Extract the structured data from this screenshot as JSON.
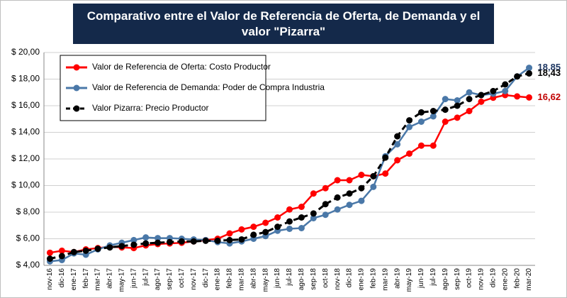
{
  "chart_data": {
    "type": "line",
    "title": "Comparativo entre el Valor de Referencia de Oferta, de Demanda y el valor \"Pizarra\"",
    "categories": [
      "nov-16",
      "dic-16",
      "ene-17",
      "feb-17",
      "mar-17",
      "abr-17",
      "may-17",
      "jun-17",
      "jul-17",
      "ago-17",
      "sep-17",
      "oct-17",
      "nov-17",
      "dic-17",
      "ene-18",
      "feb-18",
      "mar-18",
      "abr-18",
      "may-18",
      "jun-18",
      "jul-18",
      "ago-18",
      "sep-18",
      "oct-18",
      "nov-18",
      "dic-18",
      "ene-19",
      "feb-19",
      "mar-19",
      "abr-19",
      "may-19",
      "jun-19",
      "jul-19",
      "ago-19",
      "sep-19",
      "oct-19",
      "nov-19",
      "dic-19",
      "ene-20",
      "feb-20",
      "mar-20"
    ],
    "series": [
      {
        "name": "Valor de Referencia de Oferta: Costo Productor",
        "color": "#ff0000",
        "dashed": false,
        "label_color": "#c00000",
        "last_label": "16,62",
        "values": [
          4.95,
          5.1,
          5.0,
          5.2,
          5.3,
          5.4,
          5.35,
          5.3,
          5.5,
          5.6,
          5.65,
          5.7,
          5.8,
          5.9,
          6.0,
          6.4,
          6.7,
          6.9,
          7.2,
          7.6,
          8.2,
          8.4,
          9.4,
          9.8,
          10.4,
          10.4,
          10.8,
          10.7,
          10.9,
          11.9,
          12.4,
          13.0,
          13.0,
          14.8,
          15.1,
          15.6,
          16.3,
          16.6,
          16.8,
          16.7,
          16.62
        ]
      },
      {
        "name": "Valor de Referencia de Demanda: Poder de Compra Industria",
        "color": "#4a78a8",
        "dashed": false,
        "label_color": "#1f3864",
        "last_label": "18,85",
        "values": [
          4.3,
          4.4,
          4.9,
          4.8,
          5.2,
          5.5,
          5.7,
          5.9,
          6.1,
          6.05,
          6.05,
          6.0,
          5.95,
          5.9,
          5.75,
          5.65,
          5.8,
          6.0,
          6.2,
          6.6,
          6.75,
          6.8,
          7.55,
          7.8,
          8.2,
          8.55,
          8.85,
          9.9,
          12.2,
          13.1,
          14.4,
          14.8,
          15.2,
          16.5,
          16.4,
          17.0,
          16.8,
          16.9,
          17.1,
          18.2,
          18.85
        ]
      },
      {
        "name": "Valor Pizarra: Precio Productor",
        "color": "#000000",
        "dashed": true,
        "label_color": "#000000",
        "last_label": "18,43",
        "values": [
          4.5,
          4.7,
          5.0,
          5.1,
          5.25,
          5.35,
          5.45,
          5.55,
          5.65,
          5.7,
          5.75,
          5.8,
          5.8,
          5.85,
          5.85,
          5.9,
          5.95,
          6.3,
          6.5,
          6.9,
          7.3,
          7.6,
          7.9,
          8.6,
          9.1,
          9.4,
          9.8,
          10.7,
          12.1,
          13.7,
          14.9,
          15.5,
          15.6,
          15.7,
          16.0,
          16.5,
          16.8,
          17.1,
          17.6,
          18.2,
          18.43
        ]
      }
    ],
    "ylim": [
      4,
      20
    ],
    "yticks": [
      {
        "value": 4,
        "label": "$ 4,00"
      },
      {
        "value": 6,
        "label": "$ 6,00"
      },
      {
        "value": 8,
        "label": "$ 8,00"
      },
      {
        "value": 10,
        "label": "$ 10,00"
      },
      {
        "value": 12,
        "label": "$ 12,00"
      },
      {
        "value": 14,
        "label": "$ 14,00"
      },
      {
        "value": 16,
        "label": "$ 16,00"
      },
      {
        "value": 18,
        "label": "$ 18,00"
      },
      {
        "value": 20,
        "label": "$ 20,00"
      }
    ],
    "grid": true,
    "legend": "top-left"
  }
}
